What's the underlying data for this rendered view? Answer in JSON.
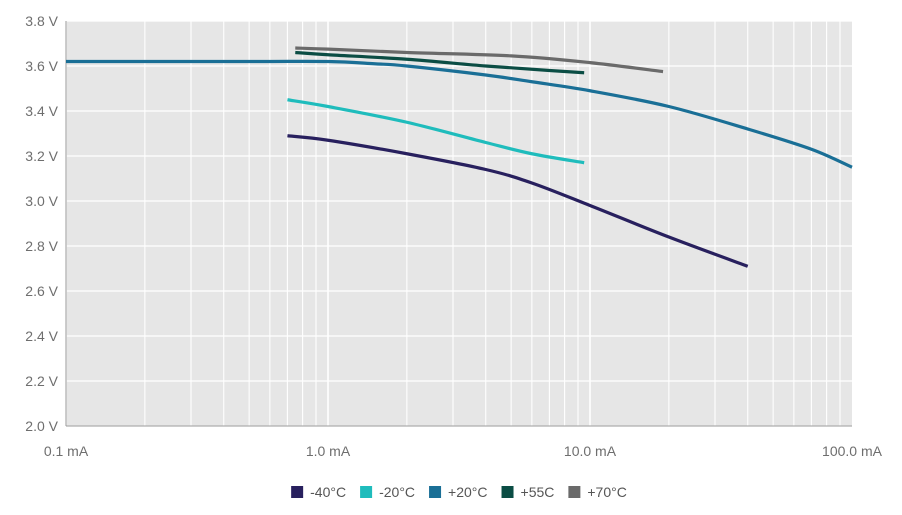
{
  "chart_data": {
    "type": "line",
    "x_scale": "log",
    "xlim": [
      0.1,
      100.0
    ],
    "ylim": [
      2.0,
      3.8
    ],
    "x_ticks": [
      {
        "value": 0.1,
        "label": "0.1 mA"
      },
      {
        "value": 1.0,
        "label": "1.0 mA"
      },
      {
        "value": 10.0,
        "label": "10.0 mA"
      },
      {
        "value": 100.0,
        "label": "100.0 mA"
      }
    ],
    "y_ticks": [
      {
        "value": 2.0,
        "label": "2.0 V"
      },
      {
        "value": 2.2,
        "label": "2.2 V"
      },
      {
        "value": 2.4,
        "label": "2.4 V"
      },
      {
        "value": 2.6,
        "label": "2.6 V"
      },
      {
        "value": 2.8,
        "label": "2.8 V"
      },
      {
        "value": 3.0,
        "label": "3.0 V"
      },
      {
        "value": 3.2,
        "label": "3.2 V"
      },
      {
        "value": 3.4,
        "label": "3.4 V"
      },
      {
        "value": 3.6,
        "label": "3.6 V"
      },
      {
        "value": 3.8,
        "label": "3.8 V"
      }
    ],
    "grid": true,
    "legend_position": "bottom-center",
    "background": "#e6e6e6",
    "series": [
      {
        "name": "-40°C",
        "color": "#28205e",
        "points": [
          [
            0.7,
            3.29
          ],
          [
            1.0,
            3.27
          ],
          [
            2.0,
            3.21
          ],
          [
            4.0,
            3.14
          ],
          [
            6.0,
            3.08
          ],
          [
            10.0,
            2.98
          ],
          [
            20.0,
            2.84
          ],
          [
            40.0,
            2.71
          ]
        ]
      },
      {
        "name": "-20°C",
        "color": "#1fbcbc",
        "points": [
          [
            0.7,
            3.45
          ],
          [
            1.0,
            3.42
          ],
          [
            2.0,
            3.35
          ],
          [
            4.0,
            3.26
          ],
          [
            6.0,
            3.21
          ],
          [
            9.5,
            3.17
          ]
        ]
      },
      {
        "name": "+20°C",
        "color": "#1a6f96",
        "points": [
          [
            0.1,
            3.62
          ],
          [
            0.5,
            3.62
          ],
          [
            1.0,
            3.62
          ],
          [
            1.5,
            3.61
          ],
          [
            2.0,
            3.6
          ],
          [
            4.0,
            3.56
          ],
          [
            6.0,
            3.53
          ],
          [
            10.0,
            3.49
          ],
          [
            20.0,
            3.42
          ],
          [
            40.0,
            3.32
          ],
          [
            70.0,
            3.23
          ],
          [
            105.0,
            3.15
          ]
        ]
      },
      {
        "name": "+55C",
        "color": "#0b4d44",
        "points": [
          [
            0.75,
            3.66
          ],
          [
            1.0,
            3.65
          ],
          [
            2.0,
            3.63
          ],
          [
            4.0,
            3.6
          ],
          [
            7.0,
            3.58
          ],
          [
            9.5,
            3.57
          ]
        ]
      },
      {
        "name": "+70°C",
        "color": "#6a6a6a",
        "points": [
          [
            0.75,
            3.68
          ],
          [
            1.0,
            3.675
          ],
          [
            2.0,
            3.66
          ],
          [
            5.0,
            3.645
          ],
          [
            10.0,
            3.615
          ],
          [
            19.0,
            3.575
          ]
        ]
      }
    ]
  }
}
